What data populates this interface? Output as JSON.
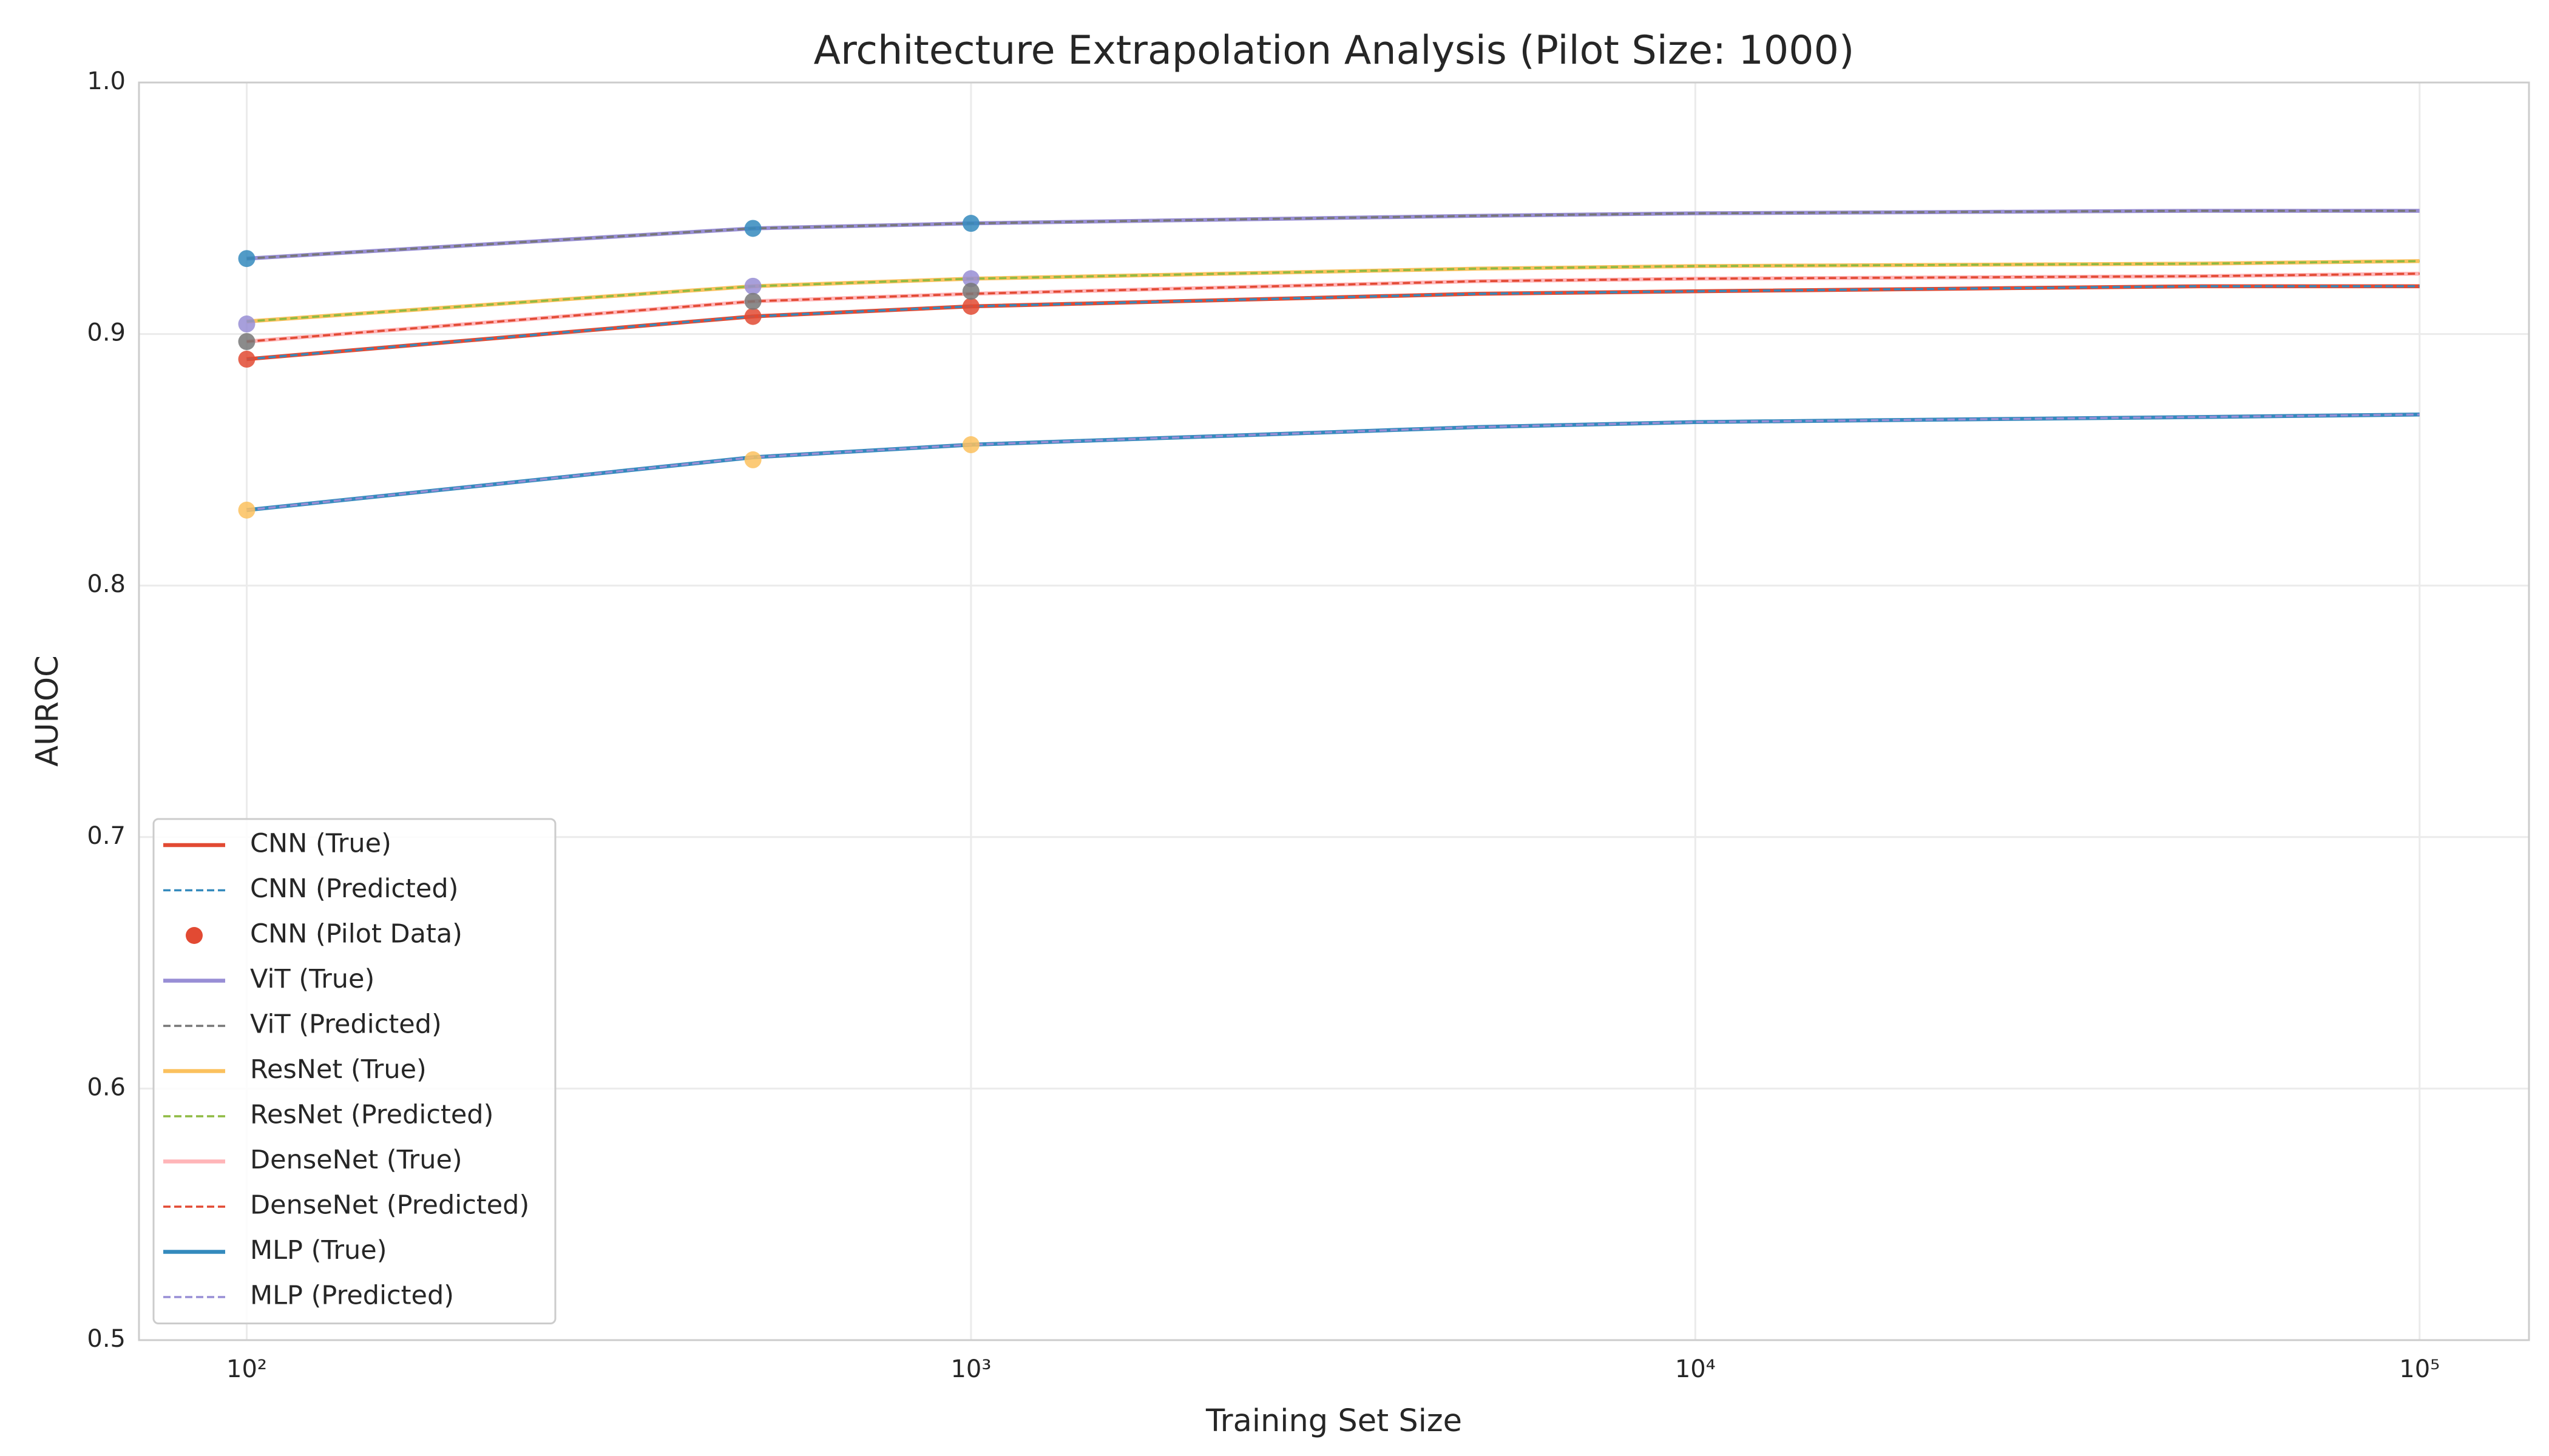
{
  "chart_data": {
    "type": "line",
    "title": "Architecture Extrapolation Analysis (Pilot Size: 1000)",
    "x_label": "Training Set Size",
    "y_label": "AUROC",
    "x_scale": "log",
    "grid": true,
    "legend": "lower left",
    "x": [
      100,
      500,
      1000,
      5000,
      10000,
      50000,
      100000
    ],
    "xlim": [
      71,
      141600
    ],
    "xticks": [
      {
        "value": 100,
        "label": "10²"
      },
      {
        "value": 1000,
        "label": "10³"
      },
      {
        "value": 10000,
        "label": "10⁴"
      },
      {
        "value": 100000,
        "label": "10⁵"
      }
    ],
    "ylim": [
      0.5,
      1.0
    ],
    "yticks": [
      0.5,
      0.6,
      0.7,
      0.8,
      0.9,
      {
        "value": 1,
        "label": "1.0"
      }
    ],
    "series": [
      {
        "name": "CNN (True)",
        "color": "#e24a33",
        "style": "solid",
        "values": [
          0.89,
          0.907,
          0.911,
          0.916,
          0.917,
          0.919,
          0.919
        ]
      },
      {
        "name": "CNN (Predicted)",
        "color": "#348abd",
        "style": "dashed",
        "values": [
          0.89,
          0.907,
          0.911,
          0.916,
          0.917,
          0.919,
          0.919
        ]
      },
      {
        "name": "CNN (Pilot Data)",
        "color": "#e24a33",
        "style": "scatter",
        "x": [
          100,
          500,
          1000
        ],
        "values": [
          0.89,
          0.907,
          0.911
        ]
      },
      {
        "name": "ViT (True)",
        "color": "#988ed5",
        "style": "solid",
        "values": [
          0.93,
          0.942,
          0.944,
          0.947,
          0.948,
          0.949,
          0.949
        ]
      },
      {
        "name": "ViT (Predicted)",
        "color": "#777777",
        "style": "dashed",
        "values": [
          0.93,
          0.942,
          0.944,
          0.947,
          0.948,
          0.949,
          0.949
        ]
      },
      {
        "color": "#348abd",
        "style": "scatter",
        "x": [
          100,
          500,
          1000
        ],
        "values": [
          0.93,
          0.942,
          0.944
        ]
      },
      {
        "name": "ResNet (True)",
        "color": "#fbc15e",
        "style": "solid",
        "values": [
          0.905,
          0.919,
          0.922,
          0.926,
          0.927,
          0.928,
          0.929
        ]
      },
      {
        "name": "ResNet (Predicted)",
        "color": "#8eba42",
        "style": "dashed",
        "values": [
          0.905,
          0.919,
          0.922,
          0.926,
          0.927,
          0.928,
          0.929
        ]
      },
      {
        "color": "#988ed5",
        "style": "scatter",
        "x": [
          100,
          500,
          1000
        ],
        "values": [
          0.904,
          0.919,
          0.922
        ]
      },
      {
        "name": "DenseNet (True)",
        "color": "#ffb5b8",
        "style": "solid",
        "values": [
          0.897,
          0.913,
          0.916,
          0.921,
          0.922,
          0.923,
          0.924
        ]
      },
      {
        "name": "DenseNet (Predicted)",
        "color": "#e24a33",
        "style": "dashed",
        "values": [
          0.897,
          0.913,
          0.916,
          0.921,
          0.922,
          0.923,
          0.924
        ]
      },
      {
        "color": "#777777",
        "style": "scatter",
        "x": [
          100,
          500,
          1000
        ],
        "values": [
          0.897,
          0.913,
          0.917
        ]
      },
      {
        "name": "MLP (True)",
        "color": "#348abd",
        "style": "solid",
        "values": [
          0.83,
          0.851,
          0.856,
          0.863,
          0.865,
          0.867,
          0.868
        ]
      },
      {
        "name": "MLP (Predicted)",
        "color": "#988ed5",
        "style": "dashed",
        "values": [
          0.83,
          0.851,
          0.856,
          0.863,
          0.865,
          0.867,
          0.868
        ]
      },
      {
        "color": "#fbc15e",
        "style": "scatter",
        "x": [
          100,
          500,
          1000
        ],
        "values": [
          0.83,
          0.85,
          0.856
        ]
      }
    ]
  }
}
